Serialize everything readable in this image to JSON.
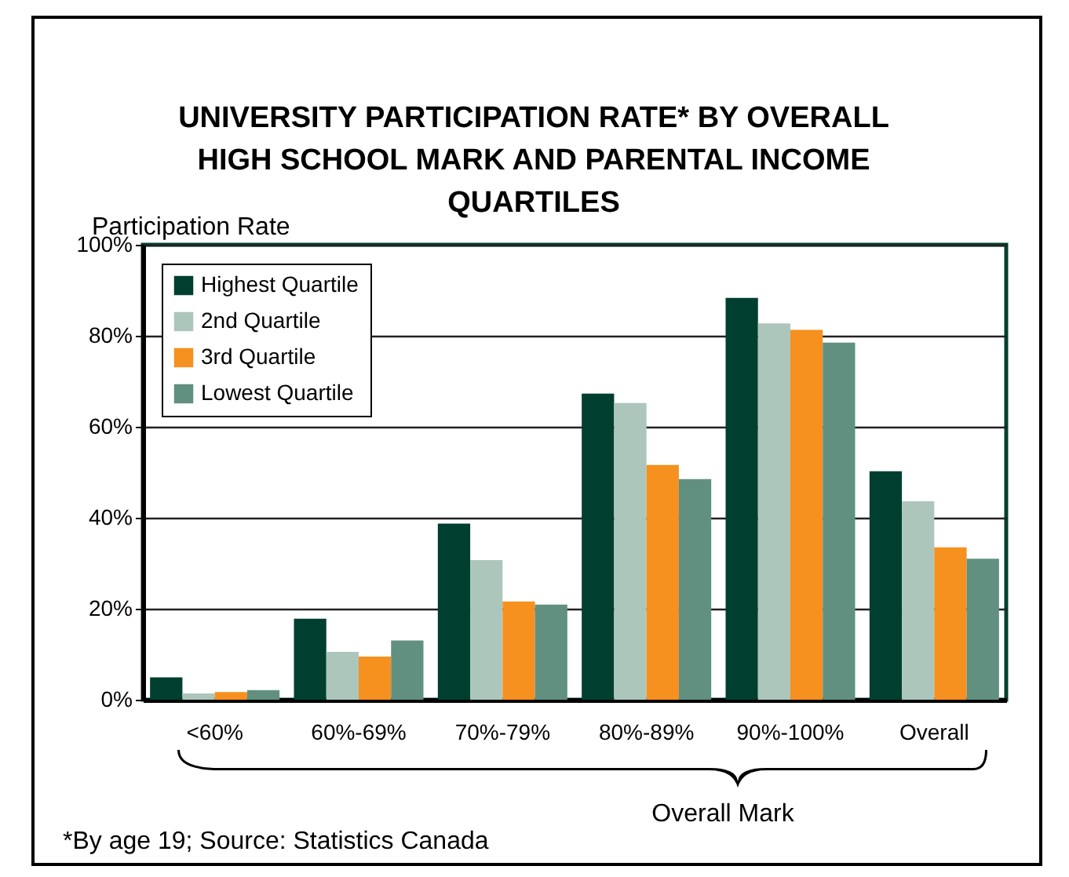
{
  "chart_data": {
    "type": "bar",
    "title": "UNIVERSITY PARTICIPATION RATE* BY OVERALL HIGH SCHOOL MARK AND PARENTAL INCOME QUARTILES",
    "ylabel": "Participation Rate",
    "xlabel": "Overall Mark",
    "annotations": [
      "*By age 19; Source: Statistics Canada"
    ],
    "categories": [
      "<60%",
      "60%-69%",
      "70%-79%",
      "80%-89%",
      "90%-100%",
      "Overall"
    ],
    "series": [
      {
        "name": "Highest Quartile",
        "color": "#003f2f",
        "values": [
          4.9,
          17.8,
          38.7,
          67.3,
          88.3,
          50.2
        ]
      },
      {
        "name": "2nd Quartile",
        "color": "#adc6bb",
        "values": [
          1.4,
          10.5,
          30.7,
          65.2,
          82.7,
          43.6
        ]
      },
      {
        "name": "3rd Quartile",
        "color": "#f6901e",
        "values": [
          1.7,
          9.5,
          21.6,
          51.6,
          81.3,
          33.5
        ]
      },
      {
        "name": "Lowest Quartile",
        "color": "#619080",
        "values": [
          2.1,
          13,
          20.9,
          48.5,
          78.5,
          31
        ]
      }
    ],
    "ylim": [
      0,
      100
    ],
    "yticks": [
      {
        "value": 0,
        "label": "0%"
      },
      {
        "value": 20,
        "label": "20%"
      },
      {
        "value": 40,
        "label": "40%"
      },
      {
        "value": 60,
        "label": "60%"
      },
      {
        "value": 80,
        "label": "80%"
      },
      {
        "value": 100,
        "label": "100%"
      }
    ],
    "grid": "y",
    "legend": "top left"
  }
}
